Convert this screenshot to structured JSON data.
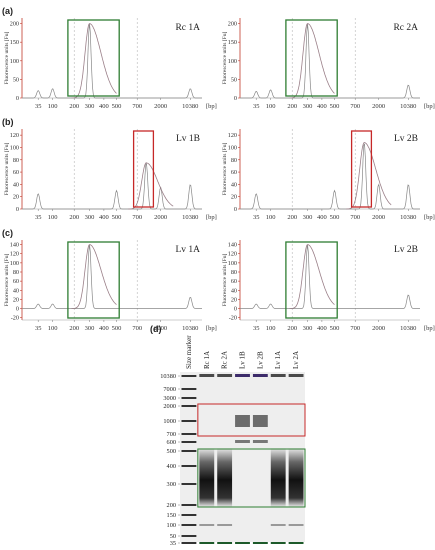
{
  "figure": {
    "panels": [
      {
        "label": "(a)",
        "titles": [
          "Rc 1A",
          "Rc 2A"
        ],
        "box": "green"
      },
      {
        "label": "(b)",
        "titles": [
          "Lv 1B",
          "Lv 2B"
        ],
        "box": "red"
      },
      {
        "label": "(c)",
        "titles": [
          "Lv 1A",
          "Lv 2B"
        ],
        "box": "green"
      },
      {
        "label": "(d)"
      }
    ]
  },
  "chart_data": [
    {
      "type": "line",
      "panel": "(a)",
      "subplot": "Rc 1A",
      "ylabel": "Fluorescence units [Fu]",
      "xunit": "[bp]",
      "xticks": [
        "35",
        "100",
        "200",
        "300",
        "400",
        "500",
        "700",
        "2000",
        "10380"
      ],
      "yticks": [
        0,
        50,
        100,
        150,
        200
      ],
      "ylim": [
        0,
        215
      ],
      "peaks": [
        {
          "x": "35",
          "y": 20
        },
        {
          "x": "100",
          "y": 25
        },
        {
          "x": "300",
          "y": 200
        },
        {
          "x": "10380",
          "y": 25
        }
      ]
    },
    {
      "type": "line",
      "panel": "(a)",
      "subplot": "Rc 2A",
      "ylabel": "Fluorescence units [Fu]",
      "xunit": "[bp]",
      "xticks": [
        "35",
        "100",
        "200",
        "300",
        "400",
        "500",
        "700",
        "2000",
        "10380"
      ],
      "yticks": [
        0,
        50,
        100,
        150,
        200
      ],
      "ylim": [
        0,
        215
      ],
      "peaks": [
        {
          "x": "35",
          "y": 18
        },
        {
          "x": "100",
          "y": 22
        },
        {
          "x": "300",
          "y": 200
        },
        {
          "x": "10380",
          "y": 35
        }
      ]
    },
    {
      "type": "line",
      "panel": "(b)",
      "subplot": "Lv 1B",
      "ylabel": "Fluorescence units [Fu]",
      "xunit": "[bp]",
      "xticks": [
        "35",
        "100",
        "200",
        "300",
        "400",
        "500",
        "700",
        "2000",
        "10380"
      ],
      "yticks": [
        0,
        20,
        40,
        60,
        80,
        100,
        120
      ],
      "ylim": [
        0,
        130
      ],
      "peaks": [
        {
          "x": "35",
          "y": 25
        },
        {
          "x": "500",
          "y": 30
        },
        {
          "x": "1000",
          "y": 75
        },
        {
          "x": "2000",
          "y": 35
        },
        {
          "x": "10380",
          "y": 40
        }
      ]
    },
    {
      "type": "line",
      "panel": "(b)",
      "subplot": "Lv 2B",
      "ylabel": "Fluorescence units [Fu]",
      "xunit": "[bp]",
      "xticks": [
        "35",
        "100",
        "200",
        "300",
        "400",
        "500",
        "700",
        "2000",
        "10380"
      ],
      "yticks": [
        0,
        20,
        40,
        60,
        80,
        100,
        120
      ],
      "ylim": [
        0,
        130
      ],
      "peaks": [
        {
          "x": "35",
          "y": 25
        },
        {
          "x": "500",
          "y": 30
        },
        {
          "x": "1000",
          "y": 108
        },
        {
          "x": "2000",
          "y": 40
        },
        {
          "x": "10380",
          "y": 40
        }
      ]
    },
    {
      "type": "line",
      "panel": "(c)",
      "subplot": "Lv 1A",
      "ylabel": "Fluorescence units [Fu]",
      "xunit": "[bp]",
      "xticks": [
        "35",
        "100",
        "200",
        "300",
        "400",
        "500",
        "700",
        "2000",
        "10380"
      ],
      "yticks": [
        -20,
        0,
        20,
        40,
        60,
        80,
        100,
        120,
        140
      ],
      "ylim": [
        -25,
        150
      ],
      "peaks": [
        {
          "x": "35",
          "y": 10
        },
        {
          "x": "100",
          "y": 10
        },
        {
          "x": "300",
          "y": 140
        },
        {
          "x": "10380",
          "y": 25
        }
      ]
    },
    {
      "type": "line",
      "panel": "(c)",
      "subplot": "Lv 2B",
      "ylabel": "Fluorescence units [Fu]",
      "xunit": "[bp]",
      "xticks": [
        "35",
        "100",
        "200",
        "300",
        "400",
        "500",
        "700",
        "2000",
        "10380"
      ],
      "yticks": [
        -20,
        0,
        20,
        40,
        60,
        80,
        100,
        120,
        140
      ],
      "ylim": [
        -25,
        150
      ],
      "peaks": [
        {
          "x": "35",
          "y": 10
        },
        {
          "x": "100",
          "y": 10
        },
        {
          "x": "300",
          "y": 140
        },
        {
          "x": "10380",
          "y": 30
        }
      ]
    },
    {
      "type": "heatmap",
      "panel": "(d)",
      "lanes": [
        "Size marker",
        "Rc 1A",
        "Rc 2A",
        "Lv 1B",
        "Lv 2B",
        "Lv 1A",
        "Lv 2A"
      ],
      "yticks": [
        "10380",
        "7000",
        "3000",
        "2000",
        "1000",
        "700",
        "600",
        "500",
        "400",
        "300",
        "200",
        "150",
        "100",
        "50",
        "35"
      ]
    }
  ]
}
